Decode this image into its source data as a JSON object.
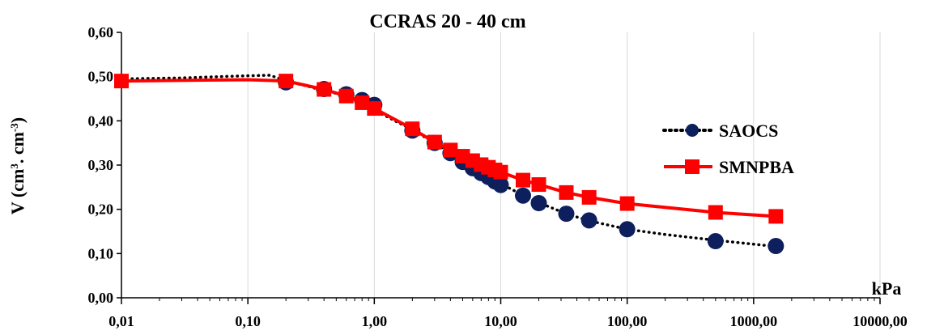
{
  "chart_data": {
    "type": "scatter",
    "title": "CCRAS 20 - 40 cm",
    "xlabel": "kPa",
    "ylabel": "V (cm³. cm⁻³)",
    "ylabel_parts": {
      "main": "V (cm",
      "sup1": "3",
      "mid": ". cm",
      "sup2": "-3",
      "end": ")"
    },
    "xscale": "log",
    "xlim": [
      0.01,
      10000
    ],
    "ylim": [
      0,
      0.6
    ],
    "x_ticks": [
      0.01,
      0.1,
      1,
      10,
      100,
      1000,
      10000
    ],
    "x_tick_labels": [
      "0,01",
      "0,10",
      "1,00",
      "10,00",
      "100,00",
      "1000,00",
      "10000,00"
    ],
    "y_ticks": [
      0,
      0.1,
      0.2,
      0.3,
      0.4,
      0.5,
      0.6
    ],
    "y_tick_labels": [
      "0,00",
      "0,10",
      "0,20",
      "0,30",
      "0,40",
      "0,50",
      "0,60"
    ],
    "grid": "vertical",
    "legend_position": "right",
    "series": [
      {
        "name": "SAOCS",
        "color": "#0d1f5c",
        "line": "dotted",
        "marker": "circle",
        "fit_x": [
          0.01,
          0.03,
          0.06,
          0.1,
          0.15,
          0.2,
          0.3,
          0.4,
          0.6,
          0.8,
          1,
          1.5,
          2,
          3,
          4,
          5,
          6,
          7,
          8,
          9,
          10,
          15,
          20,
          33,
          50,
          100,
          200,
          500,
          1500
        ],
        "fit_y": [
          0.495,
          0.497,
          0.5,
          0.502,
          0.503,
          0.49,
          0.478,
          0.468,
          0.457,
          0.446,
          0.425,
          0.398,
          0.38,
          0.35,
          0.327,
          0.31,
          0.297,
          0.286,
          0.276,
          0.268,
          0.258,
          0.232,
          0.215,
          0.19,
          0.174,
          0.155,
          0.143,
          0.13,
          0.116
        ],
        "points_x": [
          0.2,
          0.4,
          0.6,
          0.8,
          1,
          2,
          3,
          4,
          5,
          6,
          7,
          8,
          9,
          10,
          15,
          20,
          33,
          50,
          100,
          500,
          1500
        ],
        "points_y": [
          0.487,
          0.472,
          0.46,
          0.447,
          0.436,
          0.378,
          0.35,
          0.327,
          0.307,
          0.293,
          0.282,
          0.273,
          0.263,
          0.255,
          0.231,
          0.214,
          0.19,
          0.175,
          0.155,
          0.128,
          0.117
        ]
      },
      {
        "name": "SMNPBA",
        "color": "#ff0000",
        "line": "solid",
        "marker": "square",
        "fit_x": [
          0.01,
          0.1,
          0.2,
          0.4,
          0.6,
          0.8,
          1,
          2,
          3,
          4,
          5,
          6,
          7,
          8,
          9,
          10,
          15,
          20,
          33,
          50,
          100,
          500,
          1500
        ],
        "fit_y": [
          0.49,
          0.493,
          0.49,
          0.471,
          0.456,
          0.441,
          0.428,
          0.382,
          0.352,
          0.334,
          0.32,
          0.31,
          0.301,
          0.295,
          0.289,
          0.284,
          0.266,
          0.256,
          0.238,
          0.227,
          0.213,
          0.193,
          0.184
        ],
        "points_x": [
          0.01,
          0.2,
          0.4,
          0.6,
          0.8,
          1,
          2,
          3,
          4,
          5,
          6,
          7,
          8,
          9,
          10,
          15,
          20,
          33,
          50,
          100,
          500,
          1500
        ],
        "points_y": [
          0.49,
          0.49,
          0.471,
          0.456,
          0.441,
          0.428,
          0.382,
          0.352,
          0.334,
          0.32,
          0.31,
          0.301,
          0.295,
          0.289,
          0.284,
          0.266,
          0.256,
          0.238,
          0.227,
          0.213,
          0.193,
          0.184
        ]
      }
    ]
  }
}
